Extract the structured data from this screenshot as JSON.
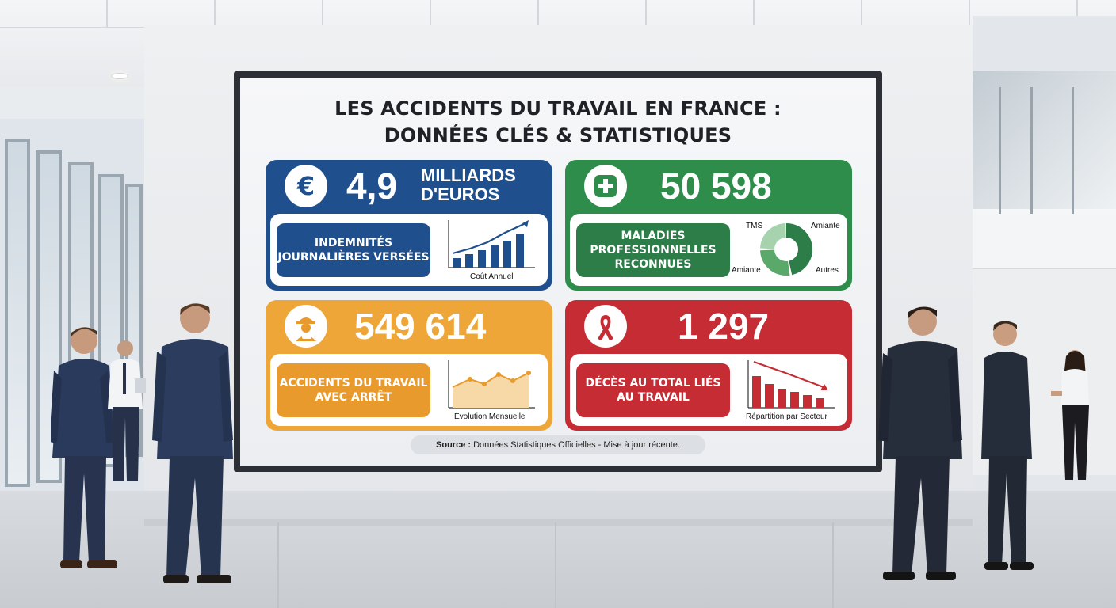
{
  "board": {
    "title_line1": "LES ACCIDENTS DU TRAVAIL EN FRANCE :",
    "title_line2": "DONNÉES CLÉS & STATISTIQUES"
  },
  "cards": {
    "indemnites": {
      "stat_line1": "MILLIARDS",
      "stat_line2": "D'EUROS",
      "stat_number": "4,9",
      "label": "INDEMNITÉS JOURNALIÈRES VERSÉES",
      "caption": "Coût Annuel",
      "icon": "euro-icon",
      "color": "#1f4f8c"
    },
    "maladies": {
      "stat_number": "50 598",
      "label": "MALADIES PROFESSIONNELLES RECONNUES",
      "legend": [
        "TMS",
        "Amiante",
        "Amiante",
        "Autres"
      ],
      "icon": "medical-cross-icon",
      "color": "#2f8d4c"
    },
    "accidents": {
      "stat_number": "549 614",
      "label": "ACCIDENTS DU TRAVAIL AVEC ARRÊT",
      "caption": "Évolution Mensuelle",
      "icon": "injured-worker-icon",
      "color": "#eda637"
    },
    "deces": {
      "stat_number": "1 297",
      "label": "DÉCÈS AU TOTAL LIÉS AU TRAVAIL",
      "caption": "Répartition par Secteur",
      "icon": "ribbon-icon",
      "color": "#c62c33"
    }
  },
  "source": {
    "label": "Source :",
    "text": "Données Statistiques Officielles - Mise à jour récente."
  }
}
